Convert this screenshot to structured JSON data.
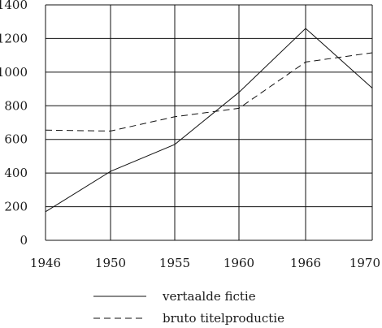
{
  "chart_data": {
    "type": "line",
    "title": "",
    "xlabel": "",
    "ylabel": "",
    "x": [
      "1946",
      "1950",
      "1955",
      "1960",
      "1966",
      "1970"
    ],
    "ylim": [
      0,
      1400
    ],
    "yticks": [
      0,
      200,
      400,
      600,
      800,
      1000,
      1200,
      1400
    ],
    "grid": true,
    "legend_position": "bottom-center",
    "series": [
      {
        "name": "vertaalde fictie",
        "style": "solid",
        "values": [
          170,
          410,
          570,
          880,
          1260,
          905
        ]
      },
      {
        "name": "bruto titelproductie",
        "style": "dashed",
        "values": [
          655,
          650,
          735,
          785,
          1060,
          1115
        ]
      }
    ]
  }
}
